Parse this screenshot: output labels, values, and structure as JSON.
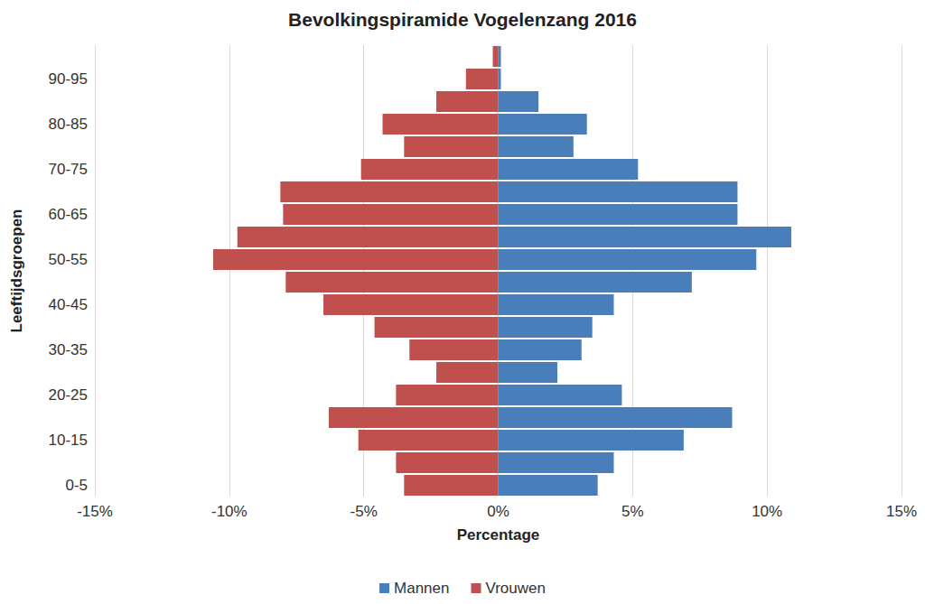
{
  "chart_data": {
    "type": "bar",
    "orientation": "horizontal",
    "title": "Bevolkingspiramide Vogelenzang 2016",
    "x_label": "Percentage",
    "y_label": "Leeftijdsgroepen",
    "categories": [
      "0-5",
      null,
      "10-15",
      null,
      "20-25",
      null,
      "30-35",
      null,
      "40-45",
      null,
      "50-55",
      null,
      "60-65",
      null,
      "70-75",
      null,
      "80-85",
      null,
      "90-95",
      null
    ],
    "series": [
      {
        "name": "Mannen",
        "color": "#4a7ebb",
        "values": [
          3.7,
          4.3,
          6.9,
          8.7,
          4.6,
          2.2,
          3.1,
          3.5,
          4.3,
          7.2,
          9.6,
          10.9,
          8.9,
          8.9,
          5.2,
          2.8,
          3.3,
          1.5,
          0.1,
          0.1
        ]
      },
      {
        "name": "Vrouwen",
        "color": "#c0504d",
        "values": [
          -3.5,
          -3.8,
          -5.2,
          -6.3,
          -3.8,
          -2.3,
          -3.3,
          -4.6,
          -6.5,
          -7.9,
          -10.6,
          -9.7,
          -8.0,
          -8.1,
          -5.1,
          -3.5,
          -4.3,
          -2.3,
          -1.2,
          -0.2
        ]
      }
    ],
    "xlim": [
      -15,
      15
    ],
    "xticks": [
      {
        "value": -15,
        "label": "-15%"
      },
      {
        "value": -10,
        "label": "-10%"
      },
      {
        "value": -5,
        "label": "-5%"
      },
      {
        "value": 0,
        "label": "0%"
      },
      {
        "value": 5,
        "label": "5%"
      },
      {
        "value": 10,
        "label": "10%"
      },
      {
        "value": 15,
        "label": "15%"
      }
    ],
    "grid": true,
    "legend": "bottom"
  }
}
